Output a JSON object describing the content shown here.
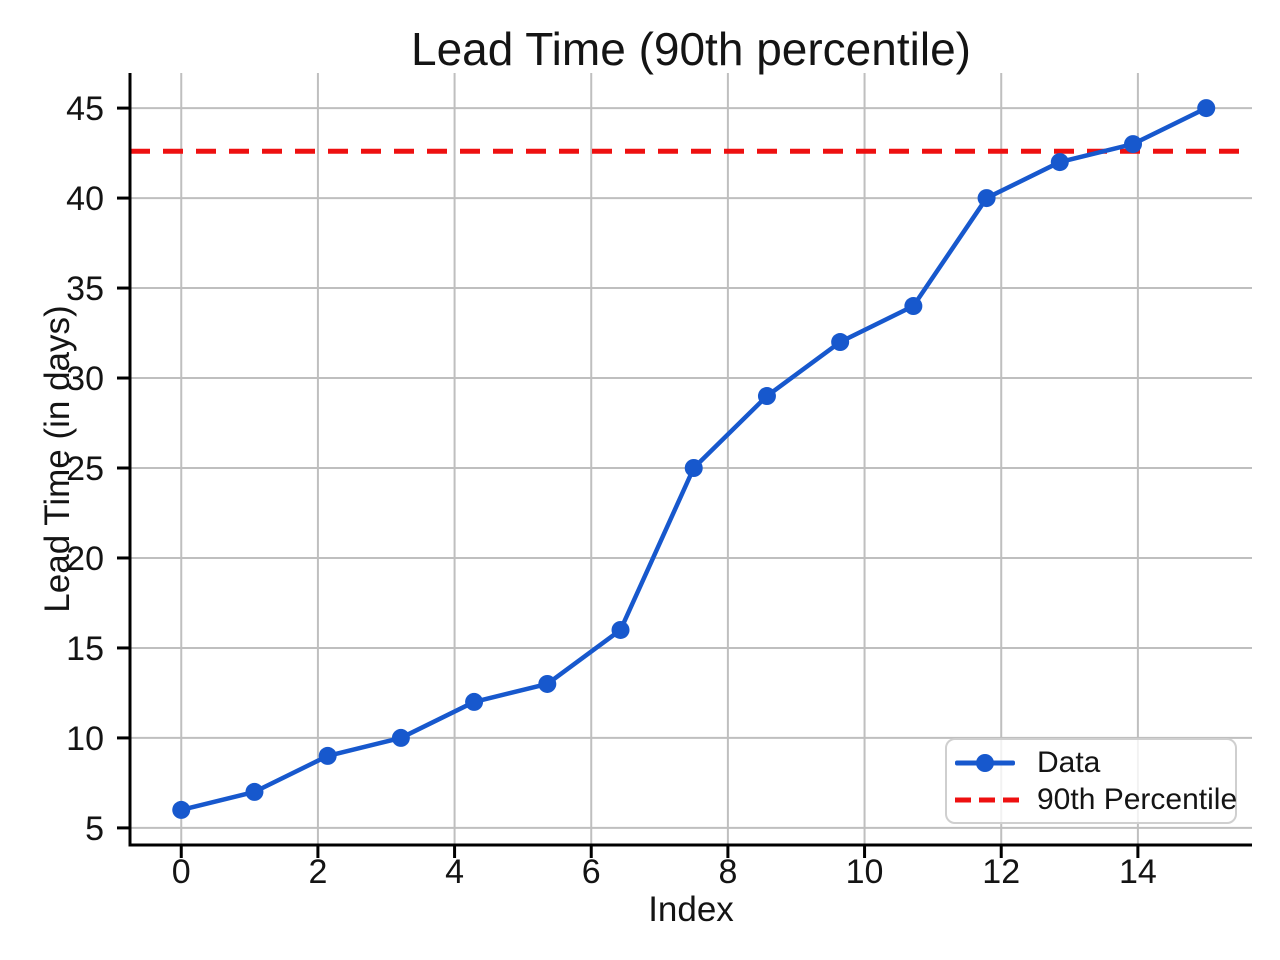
{
  "chart_data": {
    "type": "line",
    "title": "Lead Time (90th percentile)",
    "xlabel": "Index",
    "ylabel": "Lead Time (in days)",
    "x": [
      0,
      1.0714,
      2.1429,
      3.2143,
      4.2857,
      5.3571,
      6.4286,
      7.5,
      8.5714,
      9.6429,
      10.7143,
      11.7857,
      12.8571,
      13.9286,
      15
    ],
    "y": [
      6,
      7,
      9,
      10,
      12,
      13,
      16,
      25,
      29,
      32,
      34,
      40,
      42,
      43,
      45
    ],
    "series": [
      {
        "name": "Data",
        "type": "line-markers"
      },
      {
        "name": "90th Percentile",
        "type": "dashed-hline",
        "value": 42.6
      }
    ],
    "percentile_value": 42.6,
    "xticks": [
      0,
      2,
      4,
      6,
      8,
      10,
      12,
      14
    ],
    "yticks": [
      5,
      10,
      15,
      20,
      25,
      30,
      35,
      40,
      45
    ],
    "xlim": [
      -0.75,
      15.67
    ],
    "ylim": [
      4.05,
      46.95
    ],
    "grid": true,
    "legend_position": "lower right",
    "colors": {
      "line": "#1758CD",
      "percentile": "#EE1010",
      "grid": "#BFBFBF",
      "spine": "#000000",
      "text": "#141414",
      "legend_border": "#CFCFCF"
    }
  }
}
